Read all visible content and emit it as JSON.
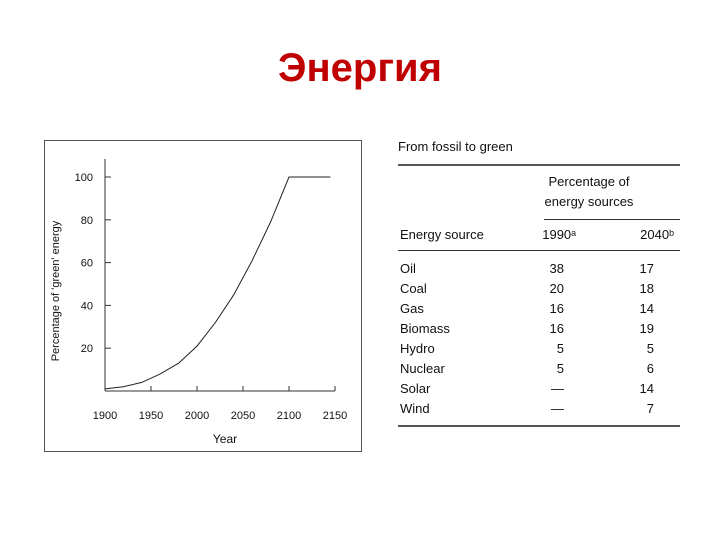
{
  "title": "Энергия",
  "chart_data": {
    "type": "line",
    "xlabel": "Year",
    "ylabel": "Percentage of 'green' energy",
    "xlim": [
      1900,
      2150
    ],
    "ylim": [
      0,
      100
    ],
    "x_ticks": [
      1900,
      1950,
      2000,
      2050,
      2100,
      2150
    ],
    "y_ticks": [
      20,
      40,
      60,
      80,
      100
    ],
    "grid": false,
    "series": [
      {
        "x": [
          1900,
          1920,
          1940,
          1960,
          1980,
          2000,
          2020,
          2040,
          2060,
          2080,
          2100,
          2120,
          2145
        ],
        "values": [
          1,
          2,
          4,
          8,
          13,
          21,
          32,
          45,
          61,
          79,
          100,
          100,
          100
        ]
      }
    ]
  },
  "table": {
    "title": "From fossil to green",
    "group_header_line1": "Percentage of",
    "group_header_line2": "energy sources",
    "col_source": "Energy source",
    "col_1990": "1990ᵃ",
    "col_2040": "2040ᵇ",
    "rows": [
      {
        "source": "Oil",
        "y1990": "38",
        "y2040": "17"
      },
      {
        "source": "Coal",
        "y1990": "20",
        "y2040": "18"
      },
      {
        "source": "Gas",
        "y1990": "16",
        "y2040": "14"
      },
      {
        "source": "Biomass",
        "y1990": "16",
        "y2040": "19"
      },
      {
        "source": "Hydro",
        "y1990": "5",
        "y2040": "5"
      },
      {
        "source": "Nuclear",
        "y1990": "5",
        "y2040": "6"
      },
      {
        "source": "Solar",
        "y1990": "—",
        "y2040": "14"
      },
      {
        "source": "Wind",
        "y1990": "—",
        "y2040": "7"
      }
    ]
  }
}
